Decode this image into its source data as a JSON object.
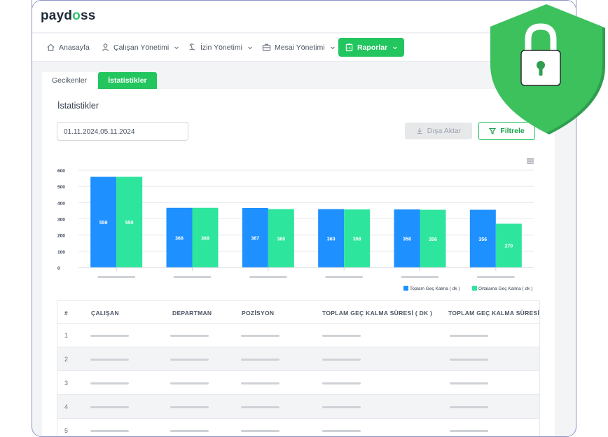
{
  "app": {
    "logo_left": "payd",
    "logo_mark": "o",
    "logo_right": "ss"
  },
  "nav": {
    "items": [
      {
        "label": "Anasayfa"
      },
      {
        "label": "Çalışan Yönetimi"
      },
      {
        "label": "İzin Yönetimi"
      },
      {
        "label": "Mesai Yönetimi"
      },
      {
        "label": "Raporlar"
      }
    ]
  },
  "tabs": [
    {
      "label": "Gecikenler"
    },
    {
      "label": "İstatistikler"
    }
  ],
  "card": {
    "title": "İstatistikler",
    "date_value": "01.11.2024,05.11.2024",
    "export_label": "Dışa Aktar",
    "filter_label": "Filtrele"
  },
  "chart_data": {
    "type": "bar",
    "categories": [
      "",
      "",
      "",
      "",
      "",
      ""
    ],
    "series": [
      {
        "name": "Toplam Geç Kalma ( dk )",
        "color": "#1e90ff",
        "values": [
          559,
          368,
          367,
          360,
          358,
          356
        ]
      },
      {
        "name": "Ortalama Geç Kalma ( dk )",
        "color": "#2ee59d",
        "values": [
          559,
          368,
          360,
          358,
          356,
          270
        ]
      }
    ],
    "yticks": [
      0,
      100,
      200,
      300,
      400,
      500,
      600
    ],
    "ylim": [
      0,
      600
    ],
    "legend": "bottom-right"
  },
  "table": {
    "headers": [
      "#",
      "ÇALIŞAN",
      "DEPARTMAN",
      "POZİSYON",
      "TOPLAM GEÇ KALMA SÜRESİ ( DK )",
      "TOPLAM GEÇ KALMA SÜRESİ"
    ],
    "rows": [
      {
        "num": "1"
      },
      {
        "num": "2"
      },
      {
        "num": "3"
      },
      {
        "num": "4"
      },
      {
        "num": "5"
      }
    ]
  },
  "colors": {
    "accent": "#22c55e",
    "frame": "#8f93c8",
    "bar_blue": "#1e90ff",
    "bar_green": "#2ee59d",
    "shield": "#3cc15d"
  }
}
